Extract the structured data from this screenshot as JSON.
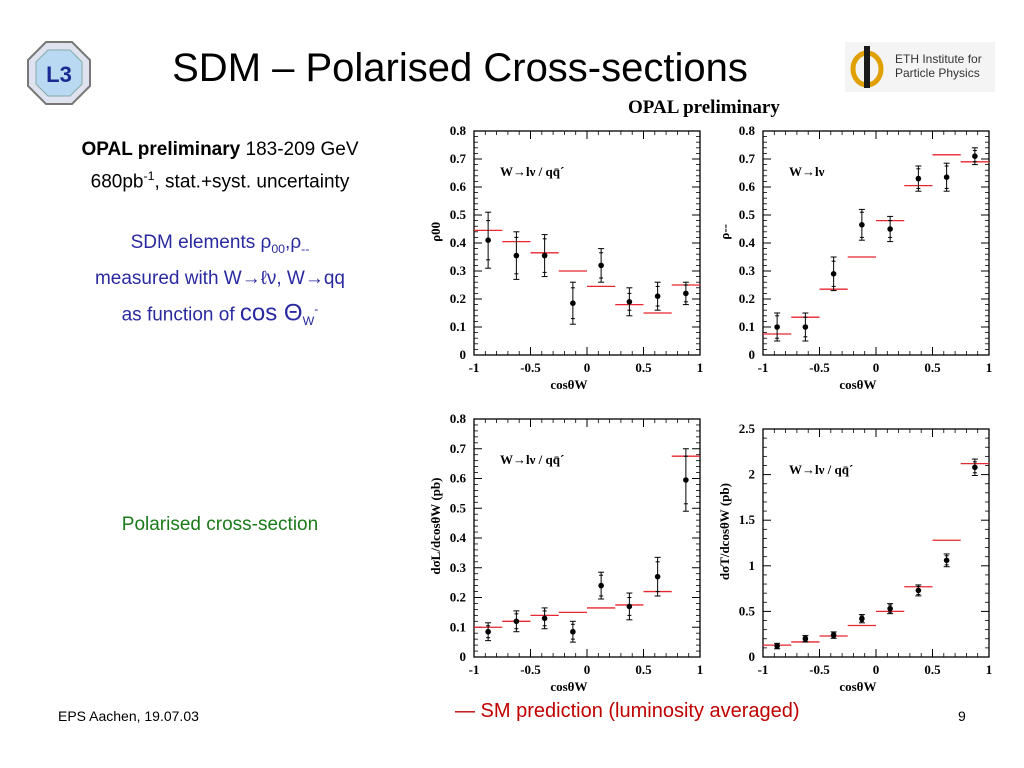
{
  "slide": {
    "title": "SDM – Polarised Cross-sections",
    "header_label": "OPAL preliminary",
    "eth_logo": {
      "line1": "ETH Institute for",
      "line2": "Particle Physics"
    },
    "l3_logo_text": "L3",
    "left_text": {
      "line1_bold": "OPAL preliminary",
      "line1_rest": " 183-209 GeV",
      "line2_a": "680pb",
      "line2_sup": "-1",
      "line2_b": ", stat.+syst. uncertainty",
      "sdm_line1_a": "SDM elements ρ",
      "sdm_line1_sub1": "00",
      "sdm_line1_b": ",ρ",
      "sdm_line1_sub2": "--",
      "sdm_line2": "measured with W→ℓν, W→qq",
      "sdm_line3_a": "as function of ",
      "sdm_line3_big": "cos Θ",
      "sdm_line3_sub": "W",
      "sdm_line3_sup": "-",
      "polarised": "Polarised cross-section"
    },
    "legend_text": "—  SM prediction (luminosity averaged)",
    "footer_left": "EPS Aachen, 19.07.03",
    "page_number": "9"
  },
  "colors": {
    "prediction": "#e8262f",
    "data": "#000000",
    "sdm_text": "#2a2aa0",
    "polarised_text": "#1a7a1a"
  },
  "chart_data": [
    {
      "type": "scatter",
      "panel_label": "W→lν / qq̄´",
      "ylabel": "ρ00",
      "xlabel": "cosθW",
      "xlim": [
        -1,
        1
      ],
      "ylim": [
        0,
        0.8
      ],
      "xticks": [
        -1,
        -0.5,
        0,
        0.5,
        1
      ],
      "xtick_labels": [
        "-1",
        "-0.5",
        "0",
        "0.5",
        "1"
      ],
      "yticks": [
        0,
        0.1,
        0.2,
        0.3,
        0.4,
        0.5,
        0.6,
        0.7,
        0.8
      ],
      "ytick_labels": [
        "0",
        "0.1",
        "0.2",
        "0.3",
        "0.4",
        "0.5",
        "0.6",
        "0.7",
        "0.8"
      ],
      "x": [
        -0.875,
        -0.625,
        -0.375,
        -0.125,
        0.125,
        0.375,
        0.625,
        0.875
      ],
      "y": [
        0.41,
        0.355,
        0.355,
        0.185,
        0.32,
        0.19,
        0.21,
        0.22
      ],
      "err_stat": [
        0.07,
        0.065,
        0.06,
        0.055,
        0.045,
        0.03,
        0.035,
        0.03
      ],
      "err_tot": [
        0.1,
        0.085,
        0.075,
        0.075,
        0.06,
        0.05,
        0.05,
        0.04
      ],
      "prediction": [
        0.445,
        0.405,
        0.365,
        0.3,
        0.245,
        0.18,
        0.15,
        0.25
      ]
    },
    {
      "type": "scatter",
      "panel_label": "W→lν",
      "ylabel": "ρ--",
      "xlabel": "cosθW",
      "xlim": [
        -1,
        1
      ],
      "ylim": [
        0,
        0.8
      ],
      "xticks": [
        -1,
        -0.5,
        0,
        0.5,
        1
      ],
      "xtick_labels": [
        "-1",
        "-0.5",
        "0",
        "0.5",
        "1"
      ],
      "yticks": [
        0,
        0.1,
        0.2,
        0.3,
        0.4,
        0.5,
        0.6,
        0.7,
        0.8
      ],
      "ytick_labels": [
        "0",
        "0.1",
        "0.2",
        "0.3",
        "0.4",
        "0.5",
        "0.6",
        "0.7",
        "0.8"
      ],
      "x": [
        -0.875,
        -0.625,
        -0.375,
        -0.125,
        0.125,
        0.375,
        0.625,
        0.875
      ],
      "y": [
        0.1,
        0.1,
        0.29,
        0.465,
        0.45,
        0.63,
        0.635,
        0.71
      ],
      "err_stat": [
        0.04,
        0.035,
        0.045,
        0.045,
        0.03,
        0.035,
        0.04,
        0.02
      ],
      "err_tot": [
        0.05,
        0.05,
        0.06,
        0.055,
        0.045,
        0.045,
        0.05,
        0.03
      ],
      "prediction": [
        0.075,
        0.135,
        0.235,
        0.35,
        0.48,
        0.605,
        0.715,
        0.69
      ]
    },
    {
      "type": "scatter",
      "panel_label": "W→lν / qq̄´",
      "ylabel": "dσL/dcosθW (pb)",
      "xlabel": "cosθW",
      "xlim": [
        -1,
        1
      ],
      "ylim": [
        0,
        0.8
      ],
      "xticks": [
        -1,
        -0.5,
        0,
        0.5,
        1
      ],
      "xtick_labels": [
        "-1",
        "-0.5",
        "0",
        "0.5",
        "1"
      ],
      "yticks": [
        0,
        0.1,
        0.2,
        0.3,
        0.4,
        0.5,
        0.6,
        0.7,
        0.8
      ],
      "ytick_labels": [
        "0",
        "0.1",
        "0.2",
        "0.3",
        "0.4",
        "0.5",
        "0.6",
        "0.7",
        "0.8"
      ],
      "x": [
        -0.875,
        -0.625,
        -0.375,
        -0.125,
        0.125,
        0.375,
        0.625,
        0.875
      ],
      "y": [
        0.085,
        0.12,
        0.13,
        0.085,
        0.24,
        0.17,
        0.27,
        0.595
      ],
      "err_stat": [
        0.02,
        0.025,
        0.025,
        0.025,
        0.035,
        0.03,
        0.05,
        0.08
      ],
      "err_tot": [
        0.03,
        0.035,
        0.035,
        0.035,
        0.045,
        0.045,
        0.065,
        0.105
      ],
      "prediction": [
        0.1,
        0.12,
        0.14,
        0.15,
        0.165,
        0.175,
        0.22,
        0.675
      ]
    },
    {
      "type": "scatter",
      "panel_label": "W→lν / qq̄´",
      "ylabel": "dσT/dcosθW (pb)",
      "xlabel": "cosθW",
      "xlim": [
        -1,
        1
      ],
      "ylim": [
        0,
        2.5
      ],
      "xticks": [
        -1,
        -0.5,
        0,
        0.5,
        1
      ],
      "xtick_labels": [
        "-1",
        "-0.5",
        "0",
        "0.5",
        "1"
      ],
      "yticks": [
        0,
        0.5,
        1,
        1.5,
        2,
        2.5
      ],
      "ytick_labels": [
        "0",
        "0.5",
        "1",
        "1.5",
        "2",
        "2.5"
      ],
      "x": [
        -0.875,
        -0.625,
        -0.375,
        -0.125,
        0.125,
        0.375,
        0.625,
        0.875
      ],
      "y": [
        0.12,
        0.2,
        0.24,
        0.42,
        0.53,
        0.73,
        1.06,
        2.08
      ],
      "err_stat": [
        0.02,
        0.025,
        0.025,
        0.03,
        0.04,
        0.045,
        0.05,
        0.06
      ],
      "err_tot": [
        0.03,
        0.035,
        0.035,
        0.045,
        0.055,
        0.06,
        0.07,
        0.09
      ],
      "prediction": [
        0.13,
        0.165,
        0.23,
        0.345,
        0.5,
        0.77,
        1.28,
        2.12
      ]
    }
  ]
}
